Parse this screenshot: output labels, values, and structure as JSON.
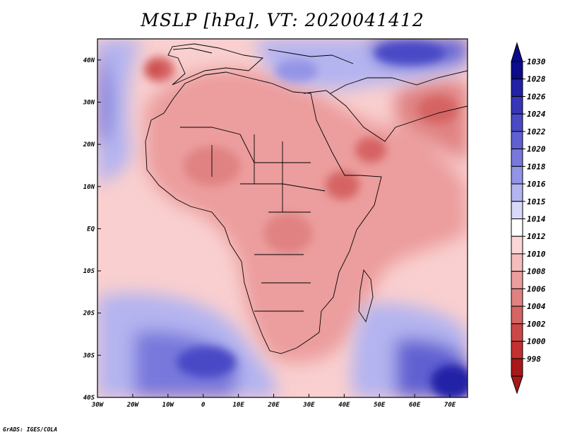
{
  "title": "MSLP [hPa], VT: 2020041412",
  "footer": "GrADS: IGES/COLA",
  "map": {
    "variable": "MSLP",
    "units": "hPa",
    "valid_time": "2020041412",
    "lon_range": [
      -30,
      75
    ],
    "lat_range": [
      -40,
      45
    ],
    "lat_ticks": [
      "40N",
      "30N",
      "20N",
      "10N",
      "EQ",
      "10S",
      "20S",
      "30S",
      "40S"
    ],
    "lon_ticks": [
      "30W",
      "20W",
      "10W",
      "0",
      "10E",
      "20E",
      "30E",
      "40E",
      "50E",
      "60E",
      "70E"
    ]
  },
  "colorbar": {
    "levels": [
      "1030",
      "1028",
      "1026",
      "1024",
      "1022",
      "1020",
      "1018",
      "1016",
      "1015",
      "1014",
      "1012",
      "1010",
      "1008",
      "1006",
      "1004",
      "1002",
      "1000",
      "998"
    ],
    "colors": [
      "#0b0b8c",
      "#2222a6",
      "#3636b8",
      "#4a4ac6",
      "#6060d2",
      "#7878dc",
      "#9494e6",
      "#b4b4f0",
      "#d8d8f8",
      "#ffffff",
      "#fad6d6",
      "#f5bcbc",
      "#ec9d9d",
      "#e08282",
      "#d66464",
      "#cc4848",
      "#c23030",
      "#a81818"
    ]
  }
}
